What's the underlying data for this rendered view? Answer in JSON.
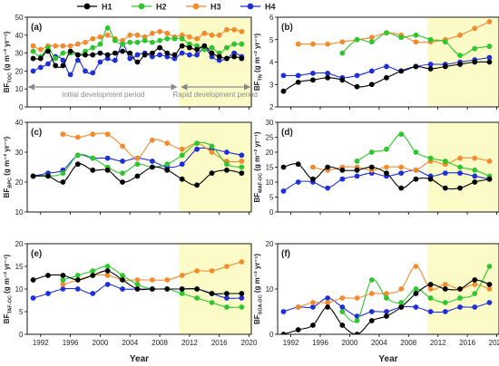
{
  "legend": [
    {
      "name": "H1",
      "color": "#000000"
    },
    {
      "name": "H2",
      "color": "#2ec52e"
    },
    {
      "name": "H3",
      "color": "#f28a2e"
    },
    {
      "name": "H4",
      "color": "#1f2fd6"
    }
  ],
  "x_axis": {
    "label": "Year",
    "ticks": [
      "1992",
      "1996",
      "2000",
      "2004",
      "2008",
      "2012",
      "2016",
      "2020"
    ]
  },
  "periods": {
    "initial": "Initial development period",
    "rapid": "Rapid development period"
  },
  "chart_data": [
    {
      "panel": "(a)",
      "type": "line",
      "ylabel": "BF_TOC (g m⁻² yr⁻¹)",
      "ylim": [
        0,
        50
      ],
      "yticks": [
        0,
        10,
        20,
        30,
        40,
        50
      ],
      "x": [
        1991,
        1992,
        1993,
        1994,
        1995,
        1996,
        1997,
        1998,
        1999,
        2000,
        2001,
        2002,
        2003,
        2004,
        2005,
        2006,
        2007,
        2008,
        2009,
        2010,
        2011,
        2012,
        2013,
        2014,
        2015,
        2016,
        2017,
        2018,
        2019
      ],
      "series": [
        {
          "name": "H1",
          "values": [
            27,
            27,
            31,
            23,
            23,
            31,
            29,
            29,
            29,
            30,
            29,
            30,
            31,
            30,
            25,
            29,
            30,
            33,
            30,
            29,
            34,
            33,
            32,
            34,
            30,
            28,
            27,
            28,
            27
          ]
        },
        {
          "name": "H2",
          "values": [
            31,
            28,
            33,
            27,
            30,
            30,
            29,
            31,
            33,
            35,
            44,
            37,
            35,
            36,
            36,
            37,
            36,
            37,
            38,
            38,
            38,
            35,
            34,
            32,
            33,
            30,
            33,
            35,
            35
          ]
        },
        {
          "name": "H3",
          "values": [
            34,
            32,
            34,
            34,
            34,
            34,
            35,
            36,
            38,
            39,
            40,
            38,
            37,
            40,
            40,
            39,
            41,
            42,
            41,
            39,
            40,
            39,
            38,
            41,
            40,
            40,
            43,
            43,
            42
          ]
        },
        {
          "name": "H4",
          "values": [
            20,
            22,
            24,
            28,
            26,
            18,
            26,
            20,
            19,
            25,
            27,
            26,
            35,
            27,
            29,
            30,
            28,
            29,
            28,
            27,
            30,
            29,
            29,
            33,
            28,
            26,
            27,
            30,
            28
          ]
        }
      ]
    },
    {
      "panel": "(b)",
      "type": "line",
      "ylabel": "BF_TN (g m⁻² yr⁻¹)",
      "ylim": [
        2,
        6
      ],
      "yticks": [
        2,
        3,
        4,
        5,
        6
      ],
      "x": [
        1991,
        1993,
        1995,
        1997,
        1999,
        2001,
        2003,
        2005,
        2007,
        2009,
        2011,
        2013,
        2015,
        2017,
        2019
      ],
      "series": [
        {
          "name": "H1",
          "values": [
            2.7,
            3.1,
            3.2,
            3.3,
            3.2,
            2.9,
            3.0,
            3.3,
            3.6,
            3.8,
            3.7,
            3.8,
            3.9,
            4.0,
            4.0
          ]
        },
        {
          "name": "H2",
          "values": [
            null,
            null,
            null,
            null,
            4.4,
            5.0,
            4.9,
            5.3,
            5.1,
            5.2,
            5.0,
            4.9,
            4.3,
            4.6,
            4.7
          ]
        },
        {
          "name": "H3",
          "values": [
            null,
            4.8,
            4.8,
            4.8,
            4.9,
            5.0,
            5.1,
            5.3,
            5.2,
            4.9,
            4.9,
            5.0,
            5.2,
            5.5,
            5.8
          ]
        },
        {
          "name": "H4",
          "values": [
            3.4,
            3.4,
            3.5,
            3.5,
            3.3,
            3.4,
            3.6,
            3.8,
            3.6,
            3.8,
            3.9,
            3.9,
            4.0,
            4.1,
            4.2
          ]
        }
      ]
    },
    {
      "panel": "(c)",
      "type": "line",
      "ylabel": "BF_BPC (g m⁻² yr⁻¹)",
      "ylim": [
        10,
        40
      ],
      "yticks": [
        10,
        20,
        30,
        40
      ],
      "x": [
        1991,
        1993,
        1995,
        1997,
        1999,
        2001,
        2003,
        2005,
        2007,
        2009,
        2011,
        2013,
        2015,
        2017,
        2019
      ],
      "series": [
        {
          "name": "H1",
          "values": [
            22,
            22,
            20,
            26,
            24,
            24,
            20,
            22,
            25,
            24,
            21,
            19,
            23,
            24,
            23
          ]
        },
        {
          "name": "H2",
          "values": [
            22,
            22,
            23,
            29,
            28,
            25,
            23,
            26,
            25,
            26,
            29,
            33,
            32,
            26,
            25
          ]
        },
        {
          "name": "H3",
          "values": [
            null,
            null,
            36,
            35,
            36,
            36,
            32,
            28,
            34,
            33,
            31,
            33,
            30,
            27,
            27
          ]
        },
        {
          "name": "H4",
          "values": [
            22,
            23,
            24,
            29,
            28,
            28,
            27,
            28,
            27,
            25,
            26,
            31,
            31,
            30,
            29
          ]
        }
      ]
    },
    {
      "panel": "(d)",
      "type": "line",
      "ylabel": "BF_MAF-OC (g m⁻² yr⁻¹)",
      "ylim": [
        0,
        30
      ],
      "yticks": [
        0,
        5,
        10,
        15,
        20,
        25,
        30
      ],
      "x": [
        1991,
        1993,
        1995,
        1997,
        1999,
        2001,
        2003,
        2005,
        2007,
        2009,
        2011,
        2013,
        2015,
        2017,
        2019
      ],
      "series": [
        {
          "name": "H1",
          "values": [
            15,
            16,
            11,
            15,
            14,
            14,
            15,
            13,
            8,
            11,
            11,
            8,
            8,
            10,
            11
          ]
        },
        {
          "name": "H2",
          "values": [
            null,
            null,
            null,
            null,
            null,
            17,
            20,
            21,
            26,
            20,
            18,
            17,
            15,
            14,
            12
          ]
        },
        {
          "name": "H3",
          "values": [
            null,
            null,
            15,
            14,
            15,
            15,
            14,
            15,
            15,
            14,
            17,
            16,
            18,
            18,
            17
          ]
        },
        {
          "name": "H4",
          "values": [
            7,
            10,
            10,
            8,
            11,
            12,
            13,
            12,
            13,
            14,
            12,
            13,
            13,
            12,
            11
          ]
        }
      ]
    },
    {
      "panel": "(e)",
      "type": "line",
      "ylabel": "BF_TAF-OC (g m⁻² yr⁻¹)",
      "ylim": [
        0,
        20
      ],
      "yticks": [
        0,
        5,
        10,
        15,
        20
      ],
      "x": [
        1991,
        1993,
        1995,
        1997,
        1999,
        2001,
        2003,
        2005,
        2007,
        2009,
        2011,
        2013,
        2015,
        2017,
        2019
      ],
      "series": [
        {
          "name": "H1",
          "values": [
            12,
            13,
            13,
            12,
            13,
            14,
            12,
            10,
            10,
            10,
            10,
            10,
            9,
            9,
            9
          ]
        },
        {
          "name": "H2",
          "values": [
            null,
            null,
            12,
            13,
            14,
            15,
            13,
            11,
            10,
            10,
            9,
            8,
            7,
            6,
            6
          ]
        },
        {
          "name": "H3",
          "values": [
            null,
            null,
            11,
            12,
            13,
            13,
            12,
            12,
            12,
            12,
            13,
            14,
            14,
            15,
            16
          ]
        },
        {
          "name": "H4",
          "values": [
            8,
            9,
            10,
            10,
            9,
            11,
            10,
            10,
            10,
            10,
            10,
            10,
            9,
            8,
            8
          ]
        }
      ]
    },
    {
      "panel": "(f)",
      "type": "line",
      "ylabel": "BF_SOA-OC (g m⁻² yr⁻¹)",
      "ylim": [
        0,
        20
      ],
      "yticks": [
        0,
        10,
        20
      ],
      "x": [
        1991,
        1993,
        1995,
        1997,
        1999,
        2001,
        2003,
        2005,
        2007,
        2009,
        2011,
        2013,
        2015,
        2017,
        2019
      ],
      "series": [
        {
          "name": "H1",
          "values": [
            0,
            1,
            2,
            6,
            2,
            0,
            3,
            4,
            6,
            9,
            11,
            10,
            10,
            12,
            11
          ]
        },
        {
          "name": "H2",
          "values": [
            null,
            null,
            null,
            null,
            5,
            3,
            12,
            8,
            7,
            10,
            8,
            7,
            8,
            9,
            15
          ]
        },
        {
          "name": "H3",
          "values": [
            null,
            6,
            7,
            7,
            8,
            8,
            9,
            9,
            10,
            15,
            10,
            11,
            10,
            11,
            10
          ]
        },
        {
          "name": "H4",
          "values": [
            5,
            6,
            6,
            8,
            6,
            4,
            5,
            5,
            6,
            6,
            5,
            5,
            6,
            6,
            7
          ]
        }
      ]
    }
  ]
}
